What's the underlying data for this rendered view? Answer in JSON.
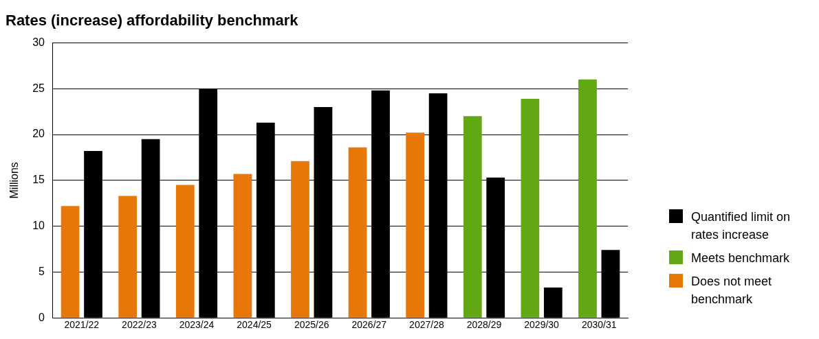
{
  "chart_data": {
    "type": "bar",
    "title": "Rates (increase) affordability benchmark",
    "ylabel": "Millions",
    "categories": [
      "2021/22",
      "2022/23",
      "2023/24",
      "2024/25",
      "2025/26",
      "2026/27",
      "2027/28",
      "2028/29",
      "2029/30",
      "2030/31"
    ],
    "series": [
      {
        "name": "Does not meet benchmark",
        "color": "#e8770a",
        "values": [
          12.2,
          13.3,
          14.5,
          15.7,
          17.1,
          18.6,
          20.2,
          null,
          null,
          null
        ]
      },
      {
        "name": "Meets benchmark",
        "color": "#62a814",
        "values": [
          null,
          null,
          null,
          null,
          null,
          null,
          null,
          22.0,
          23.9,
          26.0
        ]
      },
      {
        "name": "Quantified limit on rates increase",
        "color": "#000000",
        "values": [
          18.2,
          19.5,
          25.0,
          21.3,
          23.0,
          24.8,
          24.5,
          15.3,
          3.3,
          7.4
        ]
      }
    ],
    "ylim": [
      0,
      30
    ],
    "yticks": [
      0,
      5,
      10,
      15,
      20,
      25,
      30
    ],
    "grid": "y",
    "legend": "right"
  }
}
